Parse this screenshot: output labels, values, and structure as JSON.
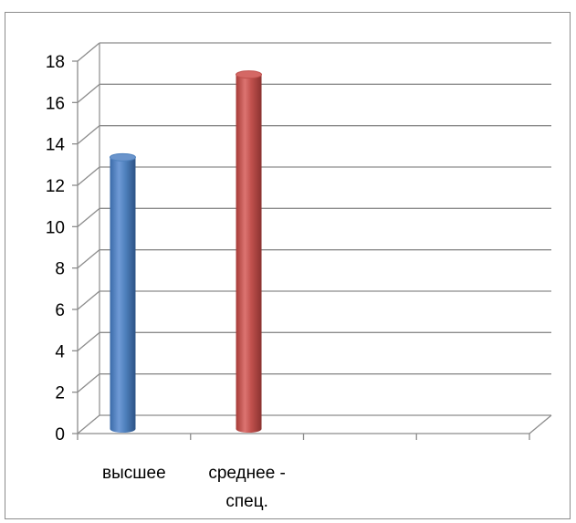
{
  "chart_data": {
    "type": "bar",
    "categories": [
      "высшее",
      "среднее -\nспец.",
      "",
      ""
    ],
    "category_lines": [
      [
        "высшее"
      ],
      [
        "среднее -",
        "спец."
      ],
      [],
      []
    ],
    "values": [
      13,
      17,
      null,
      null
    ],
    "title": "",
    "xlabel": "",
    "ylabel": "",
    "ylim": [
      0,
      18
    ],
    "yticks": [
      0,
      2,
      4,
      6,
      8,
      10,
      12,
      14,
      16,
      18
    ],
    "grid": true,
    "legend": "none",
    "bar_shape": "cylinder",
    "colors": [
      "#4f81bd",
      "#c0504d"
    ]
  }
}
